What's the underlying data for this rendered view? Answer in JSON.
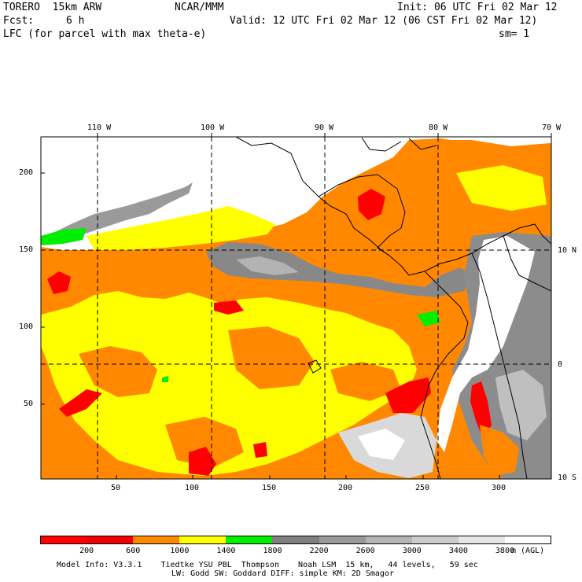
{
  "header": {
    "model": "TORERO  15km ARW",
    "org": "NCAR/MMM",
    "init": "Init: 06 UTC Fri 02 Mar 12",
    "fcst_label": "Fcst:",
    "fcst_value": "6 h",
    "valid": "Valid: 12 UTC Fri 02 Mar 12 (06 CST Fri 02 Mar 12)",
    "field": "LFC (for parcel with max theta-e)",
    "smooth": "sm= 1"
  },
  "map": {
    "lon_labels": [
      "110 W",
      "100 W",
      "90 W",
      "80 W",
      "70 W"
    ],
    "lat_labels": [
      "10 N",
      "0",
      "10 S"
    ],
    "y_grid_labels": [
      "200",
      "150",
      "100",
      "50"
    ],
    "x_grid_labels": [
      "50",
      "100",
      "150",
      "200",
      "250",
      "300"
    ]
  },
  "legend": {
    "colors": [
      "#ff0000",
      "#ee0000",
      "#ff8800",
      "#ffff00",
      "#00ee00",
      "#7f7f7f",
      "#999999",
      "#b3b3b3",
      "#cccccc",
      "#e6e6e6",
      "#ffffff"
    ],
    "ticks": [
      "200",
      "600",
      "1000",
      "1400",
      "1800",
      "2200",
      "2600",
      "3000",
      "3400",
      "3800"
    ],
    "units": "m (AGL)"
  },
  "footer": {
    "line1": "Model Info: V3.3.1    Tiedtke YSU PBL  Thompson    Noah LSM  15 km,   44 levels,   59 sec",
    "line2": "LW: Godd SW: Goddard DIFF: simple KM: 2D Smagor"
  }
}
